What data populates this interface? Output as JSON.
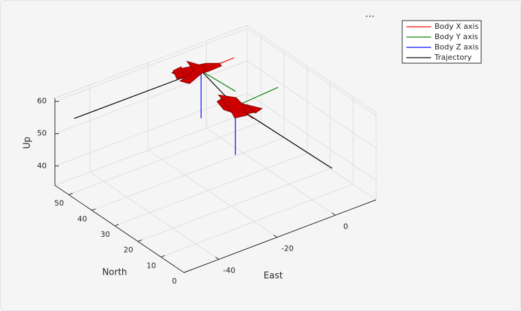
{
  "toolbar_icon": "⋯",
  "chart_data": {
    "type": "line3d",
    "xlabel": "East",
    "ylabel": "North",
    "zlabel": "Up",
    "xlim": [
      -52,
      14
    ],
    "ylim": [
      0,
      56
    ],
    "zlim": [
      34,
      61
    ],
    "xticks": [
      -40,
      -20,
      0
    ],
    "yticks": [
      0,
      10,
      20,
      30,
      40,
      50
    ],
    "zticks": [
      40,
      50,
      60
    ],
    "grid": true,
    "legend_location": "northeast",
    "series": [
      {
        "name": "Body X axis",
        "color": "#ff0000",
        "x": [
          -6.7,
          4.8,
          null,
          -7.6,
          -7.6
        ],
        "y": [
          49.8,
          50,
          null,
          33.8,
          26
        ],
        "z": [
          57,
          57,
          null,
          54,
          54
        ]
      },
      {
        "name": "Body Y axis",
        "color": "#008000",
        "x": [
          -6.7,
          -5.8,
          null,
          -7.6,
          8.0
        ],
        "y": [
          49.8,
          36,
          null,
          33.8,
          35
        ],
        "z": [
          57,
          57,
          null,
          54,
          54
        ]
      },
      {
        "name": "Body Z axis",
        "color": "#0000ff",
        "x": [
          -6.7,
          -6.7,
          null,
          -7.6,
          -7.6
        ],
        "y": [
          49.8,
          49.8,
          null,
          33.8,
          33.8
        ],
        "z": [
          57,
          42.3,
          null,
          54,
          39
        ]
      },
      {
        "name": "Trajectory",
        "color": "#000000",
        "x": [
          -52,
          -6.7,
          -7.6,
          -1.1
        ],
        "y": [
          47.7,
          49.8,
          33.8,
          0
        ],
        "z": [
          58.7,
          57,
          54,
          48.9
        ]
      }
    ]
  }
}
